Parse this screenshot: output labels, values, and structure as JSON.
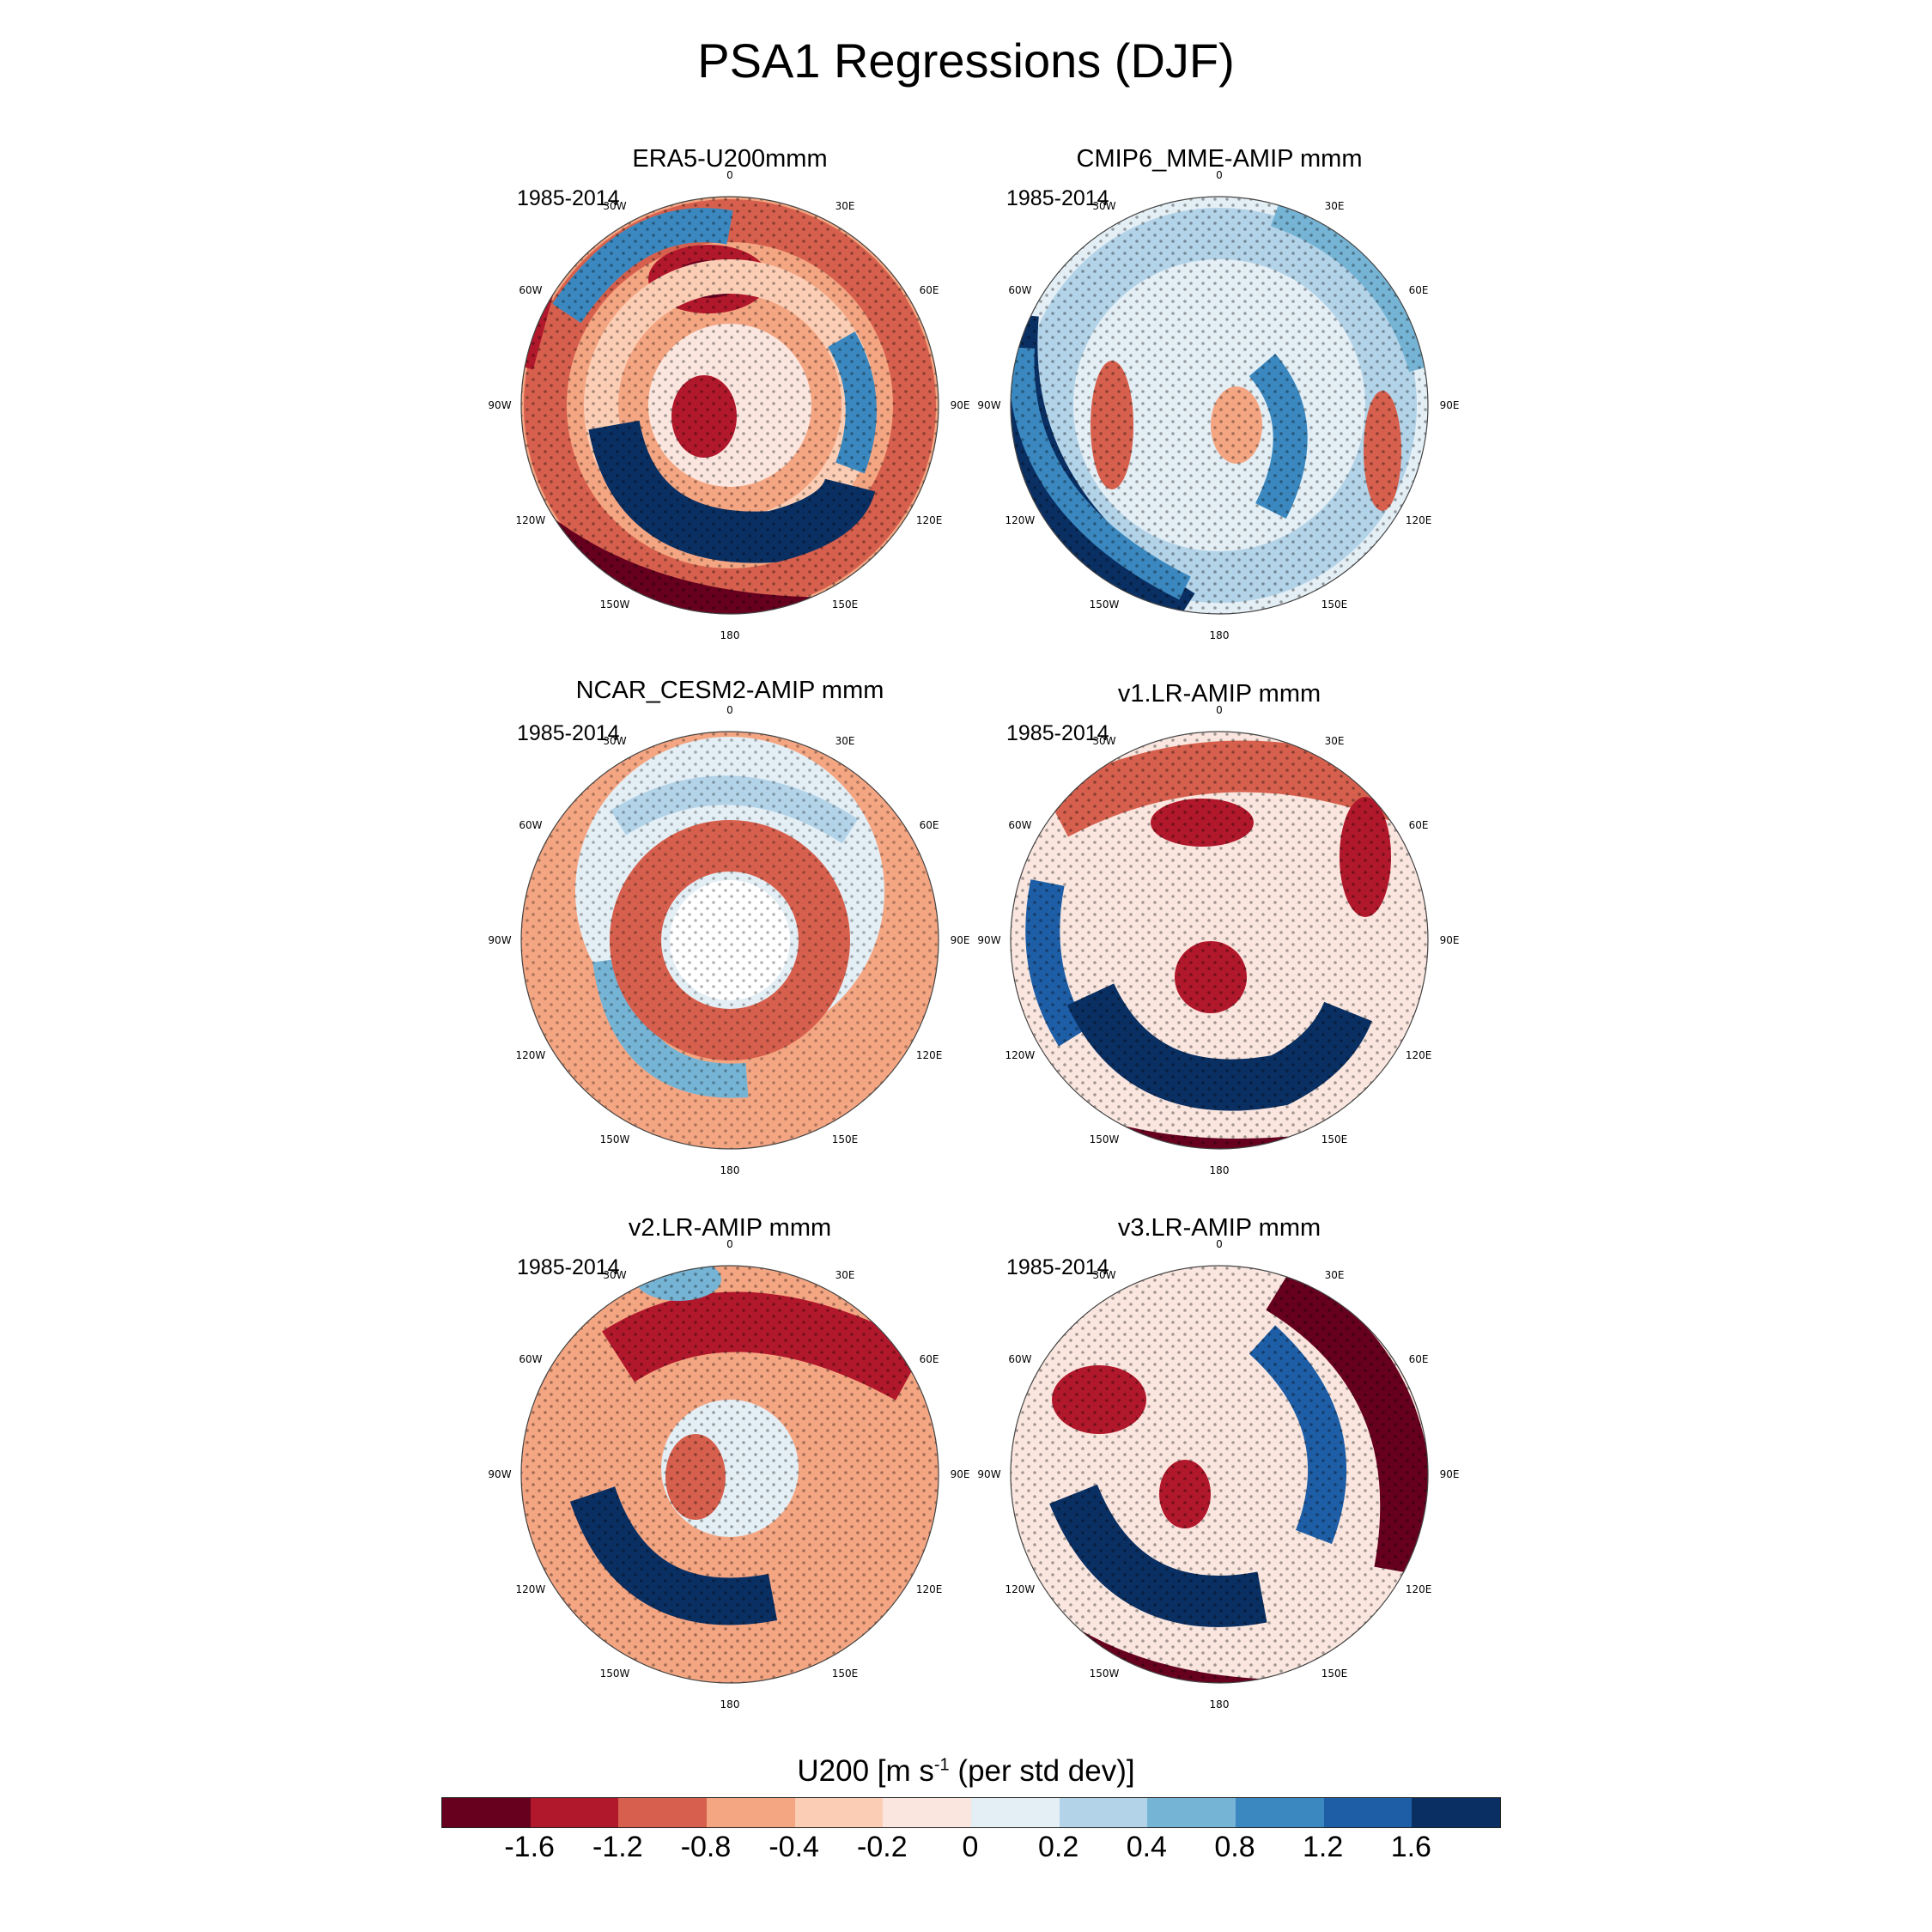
{
  "title": "PSA1 Regressions (DJF)",
  "period_label": "1985-2014",
  "longitude_labels": [
    "0",
    "30E",
    "60E",
    "90E",
    "120E",
    "150E",
    "180",
    "150W",
    "120W",
    "90W",
    "60W",
    "30W"
  ],
  "panels": [
    {
      "title": "ERA5-U200mmm"
    },
    {
      "title": "CMIP6_MME-AMIP  mmm"
    },
    {
      "title": "NCAR_CESM2-AMIP  mmm"
    },
    {
      "title": "v1.LR-AMIP  mmm"
    },
    {
      "title": "v2.LR-AMIP  mmm"
    },
    {
      "title": "v3.LR-AMIP  mmm"
    }
  ],
  "colorbar": {
    "title_main": "U200 [m s",
    "title_sup": "-1",
    "title_tail": " (per std dev)]",
    "labels": [
      "-1.6",
      "-1.2",
      "-0.8",
      "-0.4",
      "-0.2",
      "0",
      "0.2",
      "0.4",
      "0.8",
      "1.2",
      "1.6"
    ],
    "colors": [
      "#67001f",
      "#b2182b",
      "#d6604d",
      "#f4a582",
      "#fbcdb4",
      "#fae6df",
      "#e3eef5",
      "#b3d3e8",
      "#76b4d5",
      "#3a88bf",
      "#1e5ea6",
      "#0a2f62"
    ]
  }
}
